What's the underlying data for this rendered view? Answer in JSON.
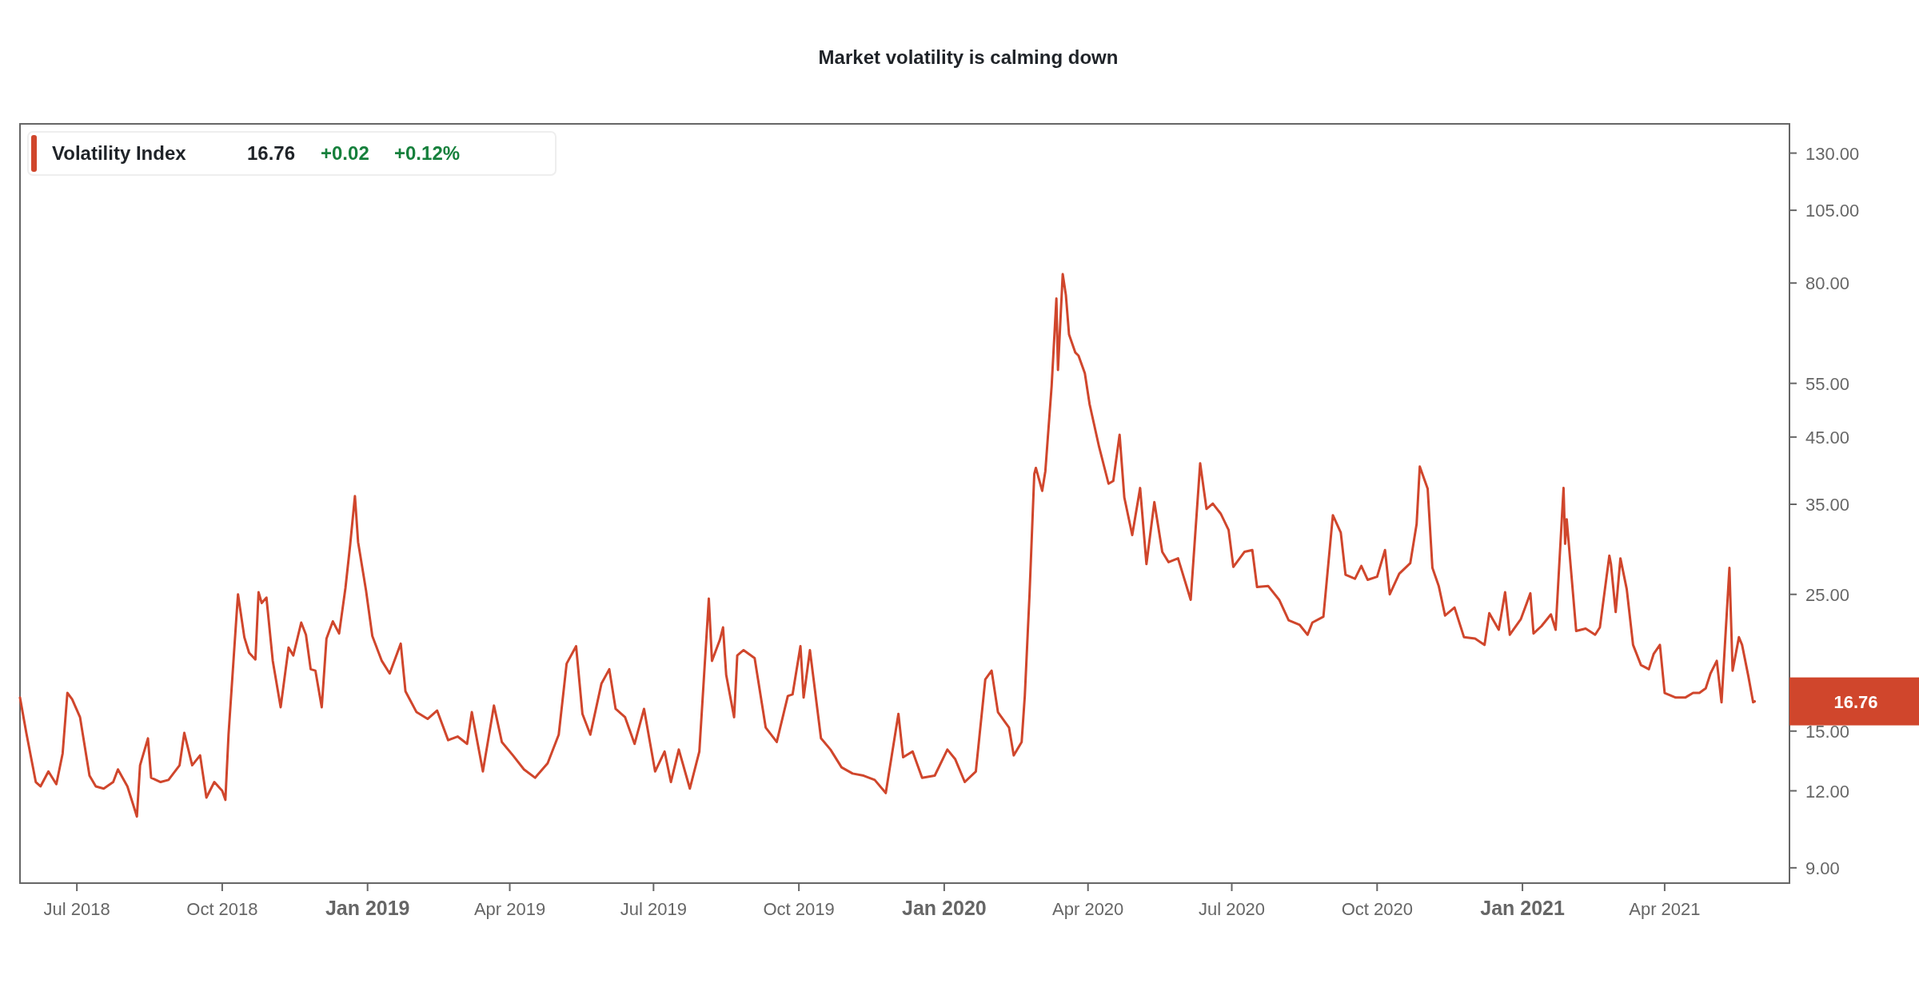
{
  "chart_data": {
    "type": "line",
    "title": "Market volatility is calming down",
    "x": [
      "2018-05-26",
      "2018-05-30",
      "2018-06-05",
      "2018-06-08",
      "2018-06-13",
      "2018-06-18",
      "2018-06-22",
      "2018-06-25",
      "2018-06-28",
      "2018-07-03",
      "2018-07-09",
      "2018-07-13",
      "2018-07-18",
      "2018-07-24",
      "2018-07-27",
      "2018-08-02",
      "2018-08-08",
      "2018-08-10",
      "2018-08-15",
      "2018-08-17",
      "2018-08-23",
      "2018-08-28",
      "2018-09-04",
      "2018-09-07",
      "2018-09-12",
      "2018-09-17",
      "2018-09-21",
      "2018-09-26",
      "2018-10-01",
      "2018-10-03",
      "2018-10-05",
      "2018-10-10",
      "2018-10-11",
      "2018-10-15",
      "2018-10-18",
      "2018-10-22",
      "2018-10-24",
      "2018-10-26",
      "2018-10-29",
      "2018-11-02",
      "2018-11-07",
      "2018-11-12",
      "2018-11-15",
      "2018-11-20",
      "2018-11-23",
      "2018-11-26",
      "2018-11-29",
      "2018-12-03",
      "2018-12-06",
      "2018-12-10",
      "2018-12-14",
      "2018-12-18",
      "2018-12-21",
      "2018-12-24",
      "2018-12-26",
      "2018-12-31",
      "2019-01-04",
      "2019-01-10",
      "2019-01-15",
      "2019-01-22",
      "2019-01-25",
      "2019-02-01",
      "2019-02-08",
      "2019-02-14",
      "2019-02-21",
      "2019-02-27",
      "2019-03-05",
      "2019-03-08",
      "2019-03-15",
      "2019-03-22",
      "2019-03-27",
      "2019-04-03",
      "2019-04-10",
      "2019-04-17",
      "2019-04-25",
      "2019-05-02",
      "2019-05-07",
      "2019-05-13",
      "2019-05-17",
      "2019-05-22",
      "2019-05-29",
      "2019-06-03",
      "2019-06-07",
      "2019-06-13",
      "2019-06-19",
      "2019-06-25",
      "2019-07-02",
      "2019-07-08",
      "2019-07-12",
      "2019-07-17",
      "2019-07-24",
      "2019-07-30",
      "2019-08-05",
      "2019-08-07",
      "2019-08-12",
      "2019-08-14",
      "2019-08-16",
      "2019-08-21",
      "2019-08-23",
      "2019-08-27",
      "2019-09-03",
      "2019-09-10",
      "2019-09-17",
      "2019-09-24",
      "2019-09-27",
      "2019-10-02",
      "2019-10-04",
      "2019-10-08",
      "2019-10-15",
      "2019-10-21",
      "2019-10-28",
      "2019-11-04",
      "2019-11-11",
      "2019-11-18",
      "2019-11-25",
      "2019-12-03",
      "2019-12-06",
      "2019-12-12",
      "2019-12-18",
      "2019-12-26",
      "2020-01-03",
      "2020-01-08",
      "2020-01-14",
      "2020-01-21",
      "2020-01-27",
      "2020-01-31",
      "2020-02-04",
      "2020-02-11",
      "2020-02-14",
      "2020-02-19",
      "2020-02-21",
      "2020-02-24",
      "2020-02-27",
      "2020-02-28",
      "2020-03-03",
      "2020-03-05",
      "2020-03-09",
      "2020-03-12",
      "2020-03-13",
      "2020-03-16",
      "2020-03-18",
      "2020-03-20",
      "2020-03-24",
      "2020-03-26",
      "2020-03-30",
      "2020-04-02",
      "2020-04-08",
      "2020-04-14",
      "2020-04-17",
      "2020-04-21",
      "2020-04-24",
      "2020-04-29",
      "2020-05-04",
      "2020-05-08",
      "2020-05-13",
      "2020-05-18",
      "2020-05-22",
      "2020-05-28",
      "2020-06-05",
      "2020-06-11",
      "2020-06-15",
      "2020-06-19",
      "2020-06-24",
      "2020-06-29",
      "2020-07-02",
      "2020-07-09",
      "2020-07-14",
      "2020-07-17",
      "2020-07-24",
      "2020-07-31",
      "2020-08-06",
      "2020-08-13",
      "2020-08-18",
      "2020-08-21",
      "2020-08-28",
      "2020-09-03",
      "2020-09-08",
      "2020-09-11",
      "2020-09-17",
      "2020-09-21",
      "2020-09-25",
      "2020-10-01",
      "2020-10-06",
      "2020-10-09",
      "2020-10-15",
      "2020-10-22",
      "2020-10-26",
      "2020-10-28",
      "2020-11-02",
      "2020-11-05",
      "2020-11-09",
      "2020-11-13",
      "2020-11-19",
      "2020-11-25",
      "2020-12-02",
      "2020-12-08",
      "2020-12-11",
      "2020-12-17",
      "2020-12-21",
      "2020-12-24",
      "2020-12-31",
      "2021-01-06",
      "2021-01-08",
      "2021-01-13",
      "2021-01-19",
      "2021-01-22",
      "2021-01-27",
      "2021-01-28",
      "2021-01-29",
      "2021-02-04",
      "2021-02-10",
      "2021-02-16",
      "2021-02-19",
      "2021-02-25",
      "2021-02-26",
      "2021-03-01",
      "2021-03-04",
      "2021-03-08",
      "2021-03-12",
      "2021-03-17",
      "2021-03-22",
      "2021-03-25",
      "2021-03-29",
      "2021-04-01",
      "2021-04-08",
      "2021-04-14",
      "2021-04-19",
      "2021-04-23",
      "2021-04-27",
      "2021-04-30",
      "2021-05-04",
      "2021-05-07",
      "2021-05-12",
      "2021-05-14",
      "2021-05-18",
      "2021-05-20",
      "2021-05-24",
      "2021-05-27",
      "2021-05-28"
    ],
    "series": [
      {
        "name": "Volatility Index",
        "color": "#d0462c",
        "values": [
          17.0,
          14.9,
          12.4,
          12.2,
          12.9,
          12.3,
          13.8,
          17.3,
          16.9,
          15.8,
          12.7,
          12.2,
          12.1,
          12.4,
          13.0,
          12.2,
          10.9,
          13.2,
          14.6,
          12.6,
          12.4,
          12.5,
          13.2,
          14.9,
          13.2,
          13.7,
          11.7,
          12.4,
          12.0,
          11.6,
          14.8,
          23.0,
          25.0,
          21.3,
          20.1,
          19.6,
          25.2,
          24.2,
          24.7,
          19.5,
          16.4,
          20.5,
          19.9,
          22.5,
          21.5,
          18.9,
          18.8,
          16.4,
          21.2,
          22.6,
          21.6,
          25.6,
          30.1,
          36.1,
          30.4,
          25.4,
          21.4,
          19.5,
          18.6,
          20.8,
          17.4,
          16.1,
          15.7,
          16.2,
          14.5,
          14.7,
          14.3,
          16.1,
          12.9,
          16.5,
          14.4,
          13.7,
          13.0,
          12.6,
          13.3,
          14.8,
          19.3,
          20.6,
          16.0,
          14.8,
          17.9,
          18.9,
          16.3,
          15.8,
          14.3,
          16.3,
          12.9,
          13.9,
          12.4,
          14.0,
          12.1,
          13.9,
          24.6,
          19.5,
          21.1,
          22.1,
          18.5,
          15.8,
          19.9,
          20.3,
          19.7,
          15.2,
          14.4,
          17.1,
          17.2,
          20.6,
          17.0,
          20.3,
          14.6,
          14.0,
          13.1,
          12.8,
          12.7,
          12.5,
          11.9,
          16.0,
          13.6,
          13.9,
          12.6,
          12.7,
          14.0,
          13.5,
          12.4,
          12.9,
          18.2,
          18.8,
          16.1,
          15.2,
          13.7,
          14.4,
          17.1,
          25.0,
          39.2,
          40.1,
          36.8,
          39.6,
          54.5,
          75.5,
          57.8,
          82.7,
          76.5,
          66.0,
          61.7,
          61.0,
          57.1,
          50.9,
          43.4,
          37.8,
          38.2,
          45.4,
          35.9,
          31.2,
          37.2,
          28.0,
          35.3,
          29.3,
          28.2,
          28.6,
          24.5,
          40.8,
          34.4,
          35.1,
          33.8,
          31.8,
          27.7,
          29.3,
          29.5,
          25.7,
          25.8,
          24.5,
          22.7,
          22.3,
          21.5,
          22.5,
          23.0,
          33.6,
          31.5,
          26.9,
          26.5,
          27.8,
          26.4,
          26.7,
          29.5,
          25.0,
          27.0,
          28.1,
          32.5,
          40.3,
          37.1,
          27.6,
          25.8,
          23.1,
          23.8,
          21.3,
          21.2,
          20.7,
          23.3,
          21.9,
          25.2,
          21.5,
          22.8,
          25.1,
          21.6,
          22.2,
          23.2,
          21.9,
          37.2,
          30.2,
          33.1,
          21.8,
          22.0,
          21.5,
          22.1,
          28.9,
          28.0,
          23.4,
          28.6,
          25.5,
          20.7,
          19.2,
          18.9,
          20.0,
          20.7,
          17.3,
          17.0,
          17.0,
          17.3,
          17.3,
          17.6,
          18.6,
          19.5,
          16.7,
          27.6,
          18.8,
          21.3,
          20.7,
          18.4,
          16.7,
          16.76
        ]
      }
    ],
    "xlim": [
      "2018-05-26",
      "2021-06-19"
    ],
    "xticks": [
      {
        "value": "2018-07-01",
        "label": "Jul 2018"
      },
      {
        "value": "2018-10-01",
        "label": "Oct 2018"
      },
      {
        "value": "2019-01-01",
        "label": "Jan 2019"
      },
      {
        "value": "2019-04-01",
        "label": "Apr 2019"
      },
      {
        "value": "2019-07-01",
        "label": "Jul 2019"
      },
      {
        "value": "2019-10-01",
        "label": "Oct 2019"
      },
      {
        "value": "2020-01-01",
        "label": "Jan 2020"
      },
      {
        "value": "2020-04-01",
        "label": "Apr 2020"
      },
      {
        "value": "2020-07-01",
        "label": "Jul 2020"
      },
      {
        "value": "2020-10-01",
        "label": "Oct 2020"
      },
      {
        "value": "2021-01-01",
        "label": "Jan 2021"
      },
      {
        "value": "2021-04-01",
        "label": "Apr 2021"
      }
    ],
    "ylim": [
      8.5,
      145
    ],
    "log": true,
    "yticks": [
      {
        "value": 9,
        "label": "9.00"
      },
      {
        "value": 12,
        "label": "12.00"
      },
      {
        "value": 15,
        "label": "15.00"
      },
      {
        "value": 25,
        "label": "25.00"
      },
      {
        "value": 35,
        "label": "35.00"
      },
      {
        "value": 45,
        "label": "45.00"
      },
      {
        "value": 55,
        "label": "55.00"
      },
      {
        "value": 80,
        "label": "80.00"
      },
      {
        "value": 105,
        "label": "105.00"
      },
      {
        "value": 130,
        "label": "130.00"
      }
    ],
    "grid": false,
    "legend": "top left",
    "marker": "none",
    "line_style": "solid",
    "annotations": [
      "16.76",
      "+0.02",
      "+0.12%",
      "16.76"
    ]
  }
}
